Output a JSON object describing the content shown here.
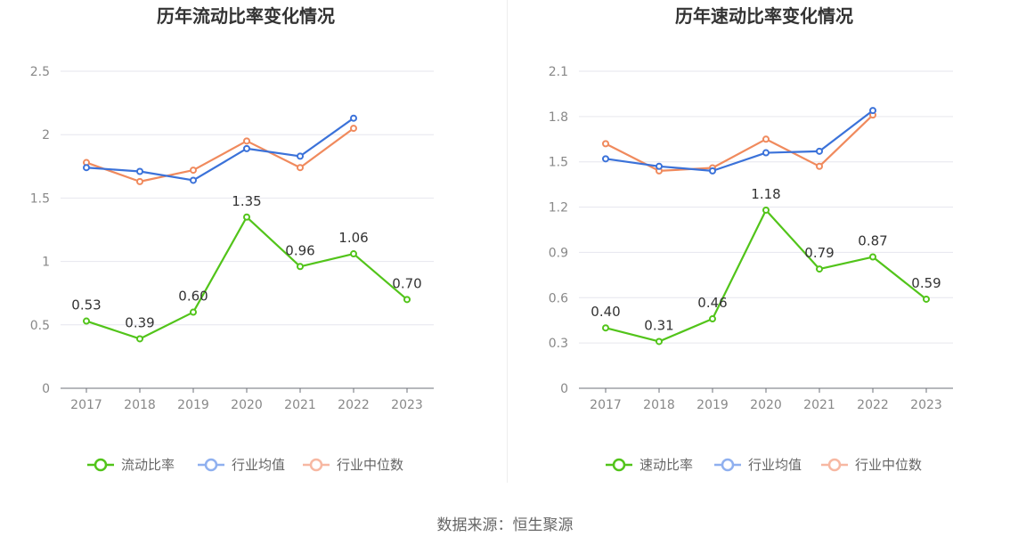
{
  "source": "数据来源：恒生聚源",
  "colors": {
    "main": "#52c41a",
    "avg": "#3b72d9",
    "median": "#f08a5d",
    "avg_legend": "#8fb0ef",
    "median_legend": "#f7b8a2"
  },
  "chart_data": [
    {
      "type": "line",
      "title": "历年流动比率变化情况",
      "categories": [
        "2017",
        "2018",
        "2019",
        "2020",
        "2021",
        "2022",
        "2023"
      ],
      "ylim": [
        0,
        2.5
      ],
      "yticks": [
        0,
        0.5,
        1,
        1.5,
        2,
        2.5
      ],
      "ytick_labels": [
        "0",
        "0.5",
        "1",
        "1.5",
        "2",
        "2.5"
      ],
      "series": [
        {
          "name": "流动比率",
          "values": [
            0.53,
            0.39,
            0.6,
            1.35,
            0.96,
            1.06,
            0.7
          ],
          "labels": [
            "0.53",
            "0.39",
            "0.60",
            "1.35",
            "0.96",
            "1.06",
            "0.70"
          ]
        },
        {
          "name": "行业均值",
          "values": [
            1.74,
            1.71,
            1.64,
            1.89,
            1.83,
            2.13,
            null
          ]
        },
        {
          "name": "行业中位数",
          "values": [
            1.78,
            1.63,
            1.72,
            1.95,
            1.74,
            2.05,
            null
          ]
        }
      ],
      "grid": true,
      "legend": "bottom"
    },
    {
      "type": "line",
      "title": "历年速动比率变化情况",
      "categories": [
        "2017",
        "2018",
        "2019",
        "2020",
        "2021",
        "2022",
        "2023"
      ],
      "ylim": [
        0,
        2.1
      ],
      "yticks": [
        0,
        0.3,
        0.6,
        0.9,
        1.2,
        1.5,
        1.8,
        2.1
      ],
      "ytick_labels": [
        "0",
        "0.3",
        "0.6",
        "0.9",
        "1.2",
        "1.5",
        "1.8",
        "2.1"
      ],
      "series": [
        {
          "name": "速动比率",
          "values": [
            0.4,
            0.31,
            0.46,
            1.18,
            0.79,
            0.87,
            0.59
          ],
          "labels": [
            "0.40",
            "0.31",
            "0.46",
            "1.18",
            "0.79",
            "0.87",
            "0.59"
          ]
        },
        {
          "name": "行业均值",
          "values": [
            1.52,
            1.47,
            1.44,
            1.56,
            1.57,
            1.84,
            null
          ]
        },
        {
          "name": "行业中位数",
          "values": [
            1.62,
            1.44,
            1.46,
            1.65,
            1.47,
            1.81,
            null
          ]
        }
      ],
      "grid": true,
      "legend": "bottom"
    }
  ]
}
